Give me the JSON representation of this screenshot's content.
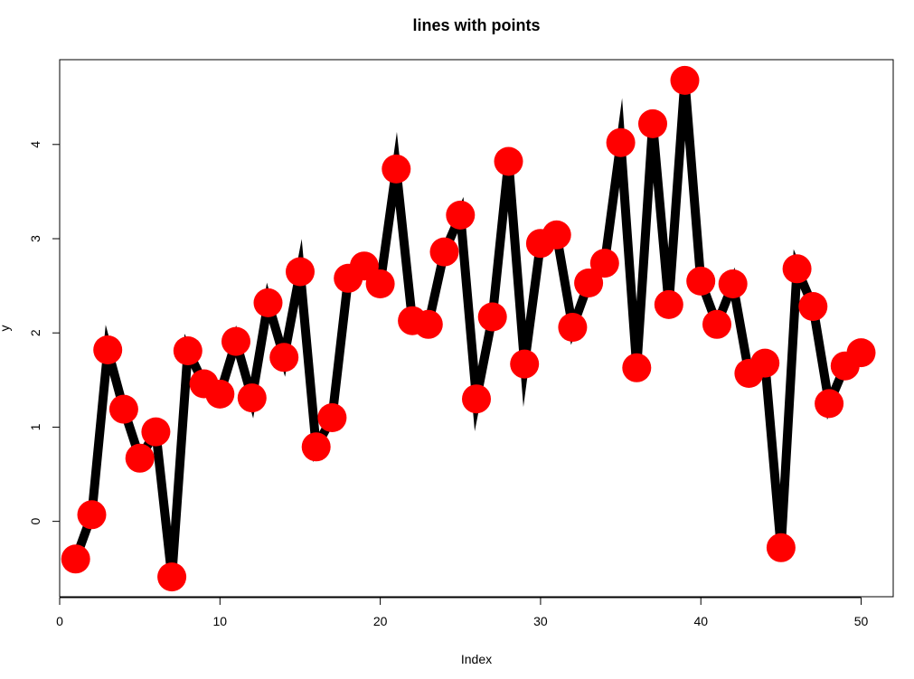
{
  "chart_data": {
    "type": "line",
    "title": "lines with points",
    "xlabel": "Index",
    "ylabel": "y",
    "xlim": [
      0,
      52
    ],
    "ylim": [
      -0.8,
      4.9
    ],
    "x_ticks": [
      0,
      10,
      20,
      30,
      40,
      50
    ],
    "y_ticks": [
      0,
      1,
      2,
      3,
      4
    ],
    "x_tick_labels": [
      "0",
      "10",
      "20",
      "30",
      "40",
      "50"
    ],
    "y_tick_labels": [
      "0",
      "1",
      "2",
      "3",
      "4"
    ],
    "grid": false,
    "legend": "none",
    "line_color": "#000000",
    "point_color": "#ff0000",
    "series": [
      {
        "x": [
          1,
          2,
          3,
          4,
          5,
          6,
          7,
          8,
          9,
          10,
          11,
          12,
          13,
          14,
          15,
          16,
          17,
          18,
          19,
          20,
          21,
          22,
          23,
          24,
          25,
          26,
          27,
          28,
          29,
          30,
          31,
          32,
          33,
          34,
          35,
          36,
          37,
          38,
          39,
          40,
          41,
          42,
          43,
          44,
          45,
          46,
          47,
          48,
          49,
          50
        ],
        "values": [
          -0.4,
          0.07,
          1.82,
          1.19,
          0.67,
          0.95,
          -0.59,
          1.81,
          1.46,
          1.35,
          1.91,
          1.31,
          2.32,
          1.74,
          2.65,
          0.79,
          1.1,
          2.58,
          2.71,
          2.52,
          3.74,
          2.13,
          2.09,
          2.86,
          3.25,
          1.3,
          2.17,
          3.82,
          1.67,
          2.95,
          3.04,
          2.06,
          2.53,
          2.74,
          4.02,
          1.63,
          4.22,
          2.3,
          4.68,
          2.55,
          2.09,
          2.52,
          1.57,
          1.68,
          -0.28,
          2.68,
          2.28,
          1.25,
          1.65,
          1.79
        ]
      }
    ]
  }
}
